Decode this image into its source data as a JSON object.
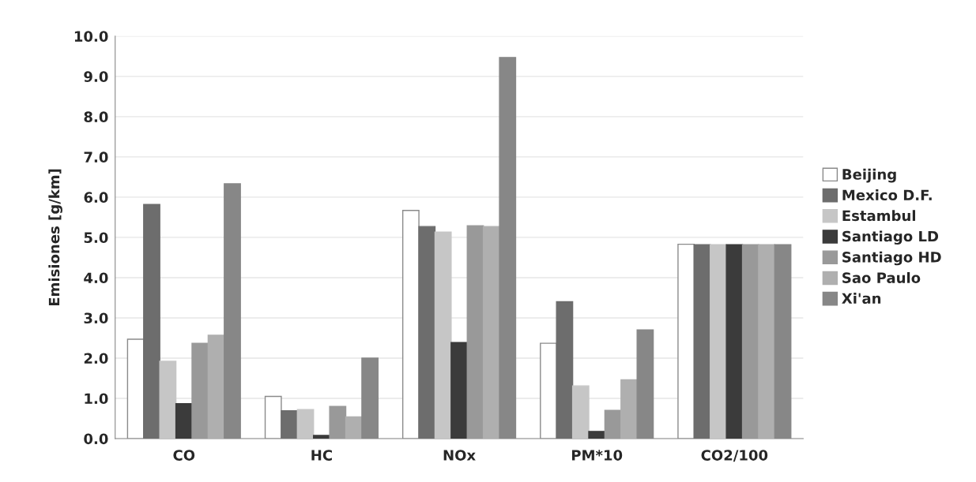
{
  "chart_data": {
    "type": "bar",
    "ylabel": "Emisiones [g/km]",
    "categories": [
      "CO",
      "HC",
      "NOx",
      "PM*10",
      "CO2/100"
    ],
    "series": [
      {
        "name": "Beijing",
        "color": "#ffffff",
        "values": [
          2.47,
          1.05,
          5.67,
          2.37,
          4.83
        ]
      },
      {
        "name": "Mexico D.F.",
        "color": "#6d6d6d",
        "values": [
          5.82,
          0.69,
          5.27,
          3.4,
          4.82
        ]
      },
      {
        "name": "Estambul",
        "color": "#c6c6c6",
        "values": [
          1.92,
          0.72,
          5.13,
          1.31,
          4.82
        ]
      },
      {
        "name": "Santiago LD",
        "color": "#3b3b3b",
        "values": [
          0.87,
          0.08,
          2.39,
          0.18,
          4.82
        ]
      },
      {
        "name": "Santiago HD",
        "color": "#999999",
        "values": [
          2.37,
          0.8,
          5.29,
          0.7,
          4.82
        ]
      },
      {
        "name": "Sao Paulo",
        "color": "#afafaf",
        "values": [
          2.57,
          0.54,
          5.27,
          1.46,
          4.82
        ]
      },
      {
        "name": "Xi'an",
        "color": "#878787",
        "values": [
          6.33,
          2.0,
          9.47,
          2.7,
          4.82
        ]
      }
    ],
    "ylim": [
      0,
      10
    ],
    "yticks": [
      {
        "value": 0,
        "label": "0.0"
      },
      {
        "value": 1,
        "label": "1.0"
      },
      {
        "value": 2,
        "label": "2.0"
      },
      {
        "value": 3,
        "label": "3.0"
      },
      {
        "value": 4,
        "label": "4.0"
      },
      {
        "value": 5,
        "label": "5.0"
      },
      {
        "value": 6,
        "label": "6.0"
      },
      {
        "value": 7,
        "label": "7.0"
      },
      {
        "value": 8,
        "label": "8.0"
      },
      {
        "value": 9,
        "label": "9.0"
      },
      {
        "value": 10,
        "label": "10.0"
      }
    ],
    "grid": "y",
    "legend": "right"
  }
}
